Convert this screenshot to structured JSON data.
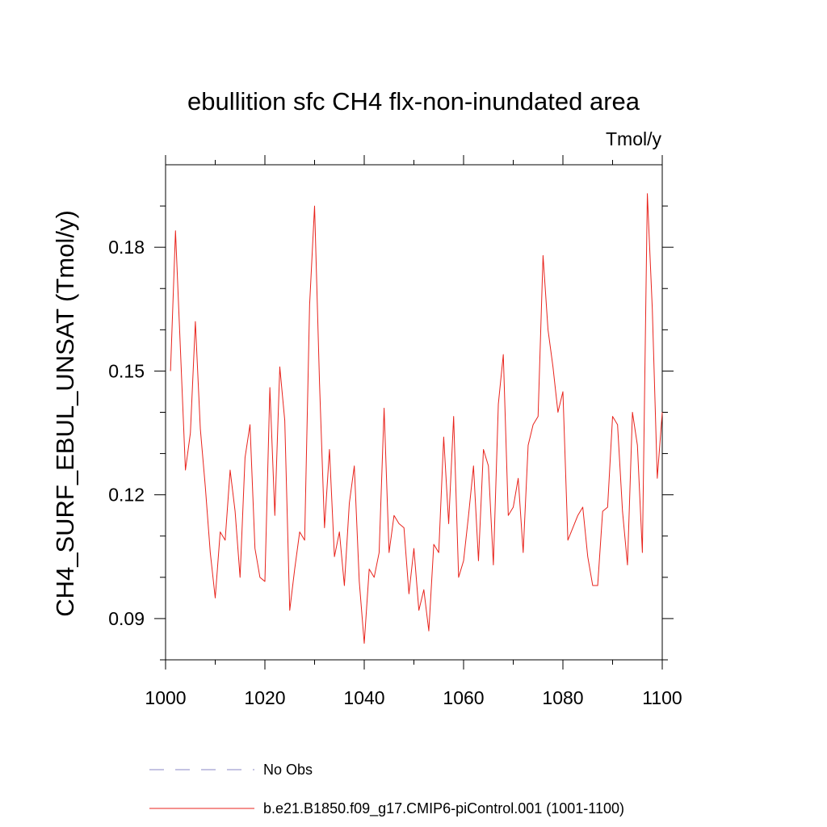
{
  "chart_data": {
    "type": "line",
    "title": "ebullition sfc CH4 flx-non-inundated area",
    "units_label": "Tmol/y",
    "xlabel": "",
    "ylabel": "CH4_SURF_EBUL_UNSAT  (Tmol/y)",
    "xlim": [
      1000,
      1100
    ],
    "ylim": [
      0.08,
      0.2
    ],
    "x_ticks": [
      1000,
      1020,
      1040,
      1060,
      1080,
      1100
    ],
    "x_tick_labels": [
      "1000",
      "1020",
      "1040",
      "1060",
      "1080",
      "1100"
    ],
    "x_minor_ticks": [
      1010,
      1030,
      1050,
      1070,
      1090
    ],
    "y_ticks": [
      0.09,
      0.12,
      0.15,
      0.18
    ],
    "y_tick_labels": [
      "0.09",
      "0.12",
      "0.15",
      "0.18"
    ],
    "y_minor_ticks": [
      0.08,
      0.1,
      0.11,
      0.13,
      0.14,
      0.16,
      0.17,
      0.19
    ],
    "series": [
      {
        "name": "b.e21.B1850.f09_g17.CMIP6-piControl.001 (1001-1100)",
        "color": "#e8231c",
        "dash": "solid",
        "x": [
          1001,
          1002,
          1003,
          1004,
          1005,
          1006,
          1007,
          1008,
          1009,
          1010,
          1011,
          1012,
          1013,
          1014,
          1015,
          1016,
          1017,
          1018,
          1019,
          1020,
          1021,
          1022,
          1023,
          1024,
          1025,
          1026,
          1027,
          1028,
          1029,
          1030,
          1031,
          1032,
          1033,
          1034,
          1035,
          1036,
          1037,
          1038,
          1039,
          1040,
          1041,
          1042,
          1043,
          1044,
          1045,
          1046,
          1047,
          1048,
          1049,
          1050,
          1051,
          1052,
          1053,
          1054,
          1055,
          1056,
          1057,
          1058,
          1059,
          1060,
          1061,
          1062,
          1063,
          1064,
          1065,
          1066,
          1067,
          1068,
          1069,
          1070,
          1071,
          1072,
          1073,
          1074,
          1075,
          1076,
          1077,
          1078,
          1079,
          1080,
          1081,
          1082,
          1083,
          1084,
          1085,
          1086,
          1087,
          1088,
          1089,
          1090,
          1091,
          1092,
          1093,
          1094,
          1095,
          1096,
          1097,
          1098,
          1099,
          1100
        ],
        "values": [
          0.15,
          0.184,
          0.155,
          0.126,
          0.135,
          0.162,
          0.136,
          0.122,
          0.106,
          0.095,
          0.111,
          0.109,
          0.126,
          0.116,
          0.1,
          0.129,
          0.137,
          0.107,
          0.1,
          0.099,
          0.146,
          0.115,
          0.151,
          0.138,
          0.092,
          0.102,
          0.111,
          0.109,
          0.166,
          0.19,
          0.147,
          0.112,
          0.131,
          0.105,
          0.111,
          0.098,
          0.118,
          0.127,
          0.099,
          0.084,
          0.102,
          0.1,
          0.106,
          0.141,
          0.106,
          0.115,
          0.113,
          0.112,
          0.096,
          0.107,
          0.092,
          0.097,
          0.087,
          0.108,
          0.106,
          0.134,
          0.113,
          0.139,
          0.1,
          0.104,
          0.115,
          0.127,
          0.104,
          0.131,
          0.127,
          0.103,
          0.142,
          0.154,
          0.115,
          0.117,
          0.124,
          0.106,
          0.132,
          0.137,
          0.139,
          0.178,
          0.16,
          0.151,
          0.14,
          0.145,
          0.109,
          0.112,
          0.115,
          0.117,
          0.105,
          0.098,
          0.098,
          0.116,
          0.117,
          0.139,
          0.137,
          0.116,
          0.103,
          0.14,
          0.132,
          0.106,
          0.193,
          0.165,
          0.124,
          0.14
        ]
      }
    ],
    "legend": [
      {
        "label": "No Obs",
        "color": "#8a87c4",
        "dash": "dashed"
      },
      {
        "label": "b.e21.B1850.f09_g17.CMIP6-piControl.001 (1001-1100)",
        "color": "#e8231c",
        "dash": "solid"
      }
    ]
  }
}
